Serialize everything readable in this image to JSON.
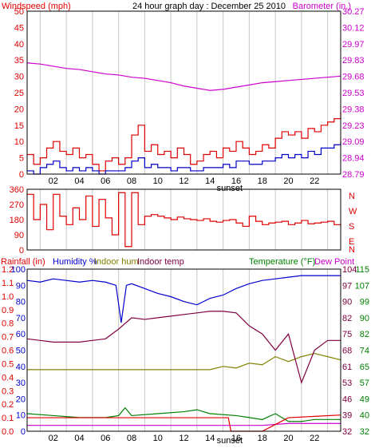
{
  "colors": {
    "red": "#e00000",
    "magenta": "#cc00cc",
    "blue": "#0000cc",
    "maroon": "#800040",
    "olive": "#808000",
    "green": "#008000",
    "grid": "#c8c8c8",
    "frame": "#000000"
  },
  "header": {
    "windspeed_label": "Windspeed (mph)",
    "title": "24 hour graph day : December 25 2010",
    "barometer_label": "Barometer (in.)"
  },
  "wind_dir_letters": [
    "N",
    "W",
    "S",
    "E",
    "N"
  ],
  "bottom_header": {
    "rainfall": "Rainfall (in)",
    "humidity": "Humidity %",
    "indoor_hum": "Indoor hum",
    "indoor_temp": "Indoor temp",
    "temperature": "Temperature (°F)",
    "dew_point": "Dew Point"
  },
  "chart_data": [
    {
      "type": "line",
      "x_ticks": [
        "02",
        "04",
        "06",
        "08",
        "10",
        "12",
        "14",
        "16",
        "18",
        "20",
        "22"
      ],
      "x_annotation": "sunset",
      "y_left": {
        "label": "Windspeed (mph)",
        "ticks": [
          "0",
          "5",
          "10",
          "15",
          "20",
          "25",
          "30",
          "35",
          "40",
          "45",
          "50"
        ],
        "range": [
          0,
          50
        ]
      },
      "y_right": {
        "label": "Barometer (in.)",
        "ticks": [
          "28.79",
          "28.94",
          "29.09",
          "29.23",
          "29.38",
          "29.53",
          "29.68",
          "29.83",
          "29.97",
          "30.12",
          "30.27"
        ],
        "range": [
          28.79,
          30.27
        ]
      },
      "series": [
        {
          "name": "Windspeed (mph)",
          "color_key": "red",
          "note": "gust",
          "x": [
            0,
            0.5,
            1,
            1.5,
            2,
            2.5,
            3,
            3.5,
            4,
            4.5,
            5,
            5.5,
            6,
            6.5,
            7,
            7.5,
            8,
            8.5,
            9,
            9.5,
            10,
            10.5,
            11,
            11.5,
            12,
            12.5,
            13,
            13.5,
            14,
            14.5,
            15,
            15.5,
            16,
            16.5,
            17,
            17.5,
            18,
            18.5,
            19,
            19.5,
            20,
            20.5,
            21,
            21.5,
            22,
            22.5,
            23,
            23.5,
            24
          ],
          "y": [
            6,
            3,
            5,
            8,
            10,
            7,
            6,
            8,
            5,
            6,
            3,
            1,
            4,
            5,
            3,
            5,
            12,
            15,
            7,
            9,
            6,
            7,
            5,
            8,
            6,
            3,
            4,
            6,
            7,
            5,
            8,
            7,
            10,
            8,
            6,
            7,
            9,
            8,
            11,
            13,
            12,
            13,
            11,
            14,
            13,
            15,
            16,
            17,
            19
          ]
        },
        {
          "name": "",
          "color_key": "blue",
          "x": [
            0,
            0.5,
            1,
            1.5,
            2,
            2.5,
            3,
            3.5,
            4,
            4.5,
            5,
            5.5,
            6,
            6.5,
            7,
            7.5,
            8,
            8.5,
            9,
            9.5,
            10,
            10.5,
            11,
            11.5,
            12,
            12.5,
            13,
            13.5,
            14,
            14.5,
            15,
            15.5,
            16,
            16.5,
            17,
            17.5,
            18,
            18.5,
            19,
            19.5,
            20,
            20.5,
            21,
            21.5,
            22,
            22.5,
            23,
            23.5,
            24
          ],
          "y": [
            1,
            0,
            2,
            3,
            4,
            2,
            1,
            2,
            1,
            2,
            1,
            0,
            1,
            1,
            1,
            2,
            4,
            5,
            2,
            3,
            2,
            2,
            1,
            2,
            2,
            1,
            1,
            2,
            2,
            2,
            3,
            2,
            4,
            4,
            3,
            3,
            4,
            4,
            5,
            6,
            5,
            6,
            5,
            7,
            6,
            8,
            8,
            9,
            10
          ]
        },
        {
          "name": "Barometer (in.)",
          "color_key": "magenta",
          "axis": "right",
          "x": [
            0,
            1,
            2,
            3,
            4,
            5,
            6,
            7,
            8,
            9,
            10,
            11,
            12,
            13,
            14,
            15,
            16,
            17,
            18,
            19,
            20,
            21,
            22,
            23,
            24
          ],
          "y": [
            29.8,
            29.79,
            29.77,
            29.75,
            29.74,
            29.72,
            29.7,
            29.69,
            29.67,
            29.66,
            29.64,
            29.62,
            29.59,
            29.57,
            29.55,
            29.56,
            29.58,
            29.6,
            29.62,
            29.63,
            29.64,
            29.65,
            29.66,
            29.67,
            29.68
          ]
        }
      ]
    },
    {
      "type": "scatter",
      "x_ticks": [
        "02",
        "04",
        "06",
        "08",
        "10",
        "12",
        "14",
        "16",
        "18",
        "20",
        "22"
      ],
      "y_left": {
        "ticks": [
          "0",
          "90",
          "180",
          "270",
          "360"
        ],
        "range": [
          0,
          360
        ]
      },
      "y_right_labels": [
        "N",
        "W",
        "S",
        "E",
        "N"
      ],
      "series": [
        {
          "name": "",
          "color_key": "red",
          "x": [
            0,
            0.5,
            1,
            1.5,
            2,
            2.5,
            3,
            3.5,
            4,
            4.5,
            5,
            5.5,
            6,
            6.5,
            7,
            7.5,
            8,
            8.5,
            9,
            9.5,
            10,
            10.5,
            11,
            11.5,
            12,
            12.5,
            13,
            13.5,
            14,
            14.5,
            15,
            15.5,
            16,
            16.5,
            17,
            17.5,
            18,
            18.5,
            19,
            19.5,
            20,
            20.5,
            21,
            21.5,
            22,
            22.5,
            23,
            23.5,
            24
          ],
          "y": [
            330,
            180,
            270,
            120,
            330,
            200,
            150,
            250,
            180,
            320,
            140,
            300,
            190,
            90,
            340,
            20,
            340,
            150,
            200,
            210,
            200,
            190,
            180,
            195,
            185,
            180,
            175,
            185,
            170,
            165,
            175,
            180,
            160,
            140,
            200,
            170,
            150,
            160,
            165,
            170,
            150,
            160,
            175,
            155,
            160,
            165,
            170,
            150,
            140
          ]
        }
      ]
    },
    {
      "type": "line",
      "x_ticks": [
        "02",
        "04",
        "06",
        "08",
        "10",
        "12",
        "14",
        "16",
        "18",
        "20",
        "22"
      ],
      "x_annotation": "sunset",
      "y_left_outer": {
        "label": "Rainfall (in)",
        "ticks": [
          "0.0",
          "0.1",
          "0.2",
          "0.3",
          "0.4",
          "0.5",
          "0.6",
          "0.7",
          "0.8",
          "0.9",
          "1.0",
          "1.1",
          "1.2"
        ],
        "range": [
          0,
          1.2
        ]
      },
      "y_left_inner": {
        "label": "Humidity %",
        "ticks": [
          "0",
          "10",
          "20",
          "30",
          "40",
          "50",
          "60",
          "70",
          "80",
          "90",
          "100"
        ],
        "range": [
          0,
          100
        ]
      },
      "y_right_inner": {
        "ticks": [
          "32",
          "39",
          "46",
          "53",
          "61",
          "68",
          "75",
          "82",
          "90",
          "97",
          "104"
        ],
        "range": [
          32,
          104
        ]
      },
      "y_right_outer": {
        "label": "Temperature (°F)",
        "ticks": [
          "32",
          "40",
          "49",
          "57",
          "65",
          "74",
          "82",
          "90",
          "99",
          "107",
          "115"
        ],
        "range": [
          32,
          115
        ]
      },
      "series": [
        {
          "name": "Humidity %",
          "color_key": "blue",
          "axis": "humidity",
          "x": [
            0,
            1,
            2,
            3,
            4,
            5,
            6,
            6.8,
            7.2,
            7.6,
            8,
            9,
            10,
            11,
            12,
            13,
            14,
            15,
            16,
            17,
            18,
            19,
            20,
            21,
            22,
            23,
            24
          ],
          "y": [
            93,
            92,
            94,
            93,
            92,
            93,
            92,
            90,
            67,
            90,
            91,
            88,
            85,
            83,
            80,
            78,
            82,
            84,
            88,
            91,
            93,
            94,
            95,
            96,
            96,
            96,
            96
          ]
        },
        {
          "name": "Indoor hum",
          "color_key": "olive",
          "axis": "humidity",
          "x": [
            0,
            2,
            4,
            6,
            8,
            10,
            12,
            14,
            15,
            16,
            17,
            18,
            19,
            20,
            21,
            22,
            23,
            24
          ],
          "y": [
            38,
            38,
            38,
            38,
            38,
            38,
            38,
            38,
            40,
            39,
            42,
            41,
            46,
            43,
            46,
            48,
            46,
            44
          ]
        },
        {
          "name": "Indoor temp",
          "color_key": "maroon",
          "axis": "humidity",
          "x": [
            0,
            1,
            2,
            3,
            4,
            5,
            6,
            7,
            8,
            9,
            10,
            11,
            12,
            13,
            14,
            15,
            16,
            17,
            18,
            19,
            20,
            21,
            22,
            23,
            24
          ],
          "y": [
            57,
            56,
            55,
            55,
            55,
            56,
            57,
            63,
            70,
            69,
            70,
            71,
            72,
            73,
            74,
            74,
            73,
            65,
            60,
            50,
            60,
            30,
            50,
            56,
            56
          ]
        },
        {
          "name": "Temperature (°F)",
          "color_key": "green",
          "axis": "temperature",
          "x": [
            0,
            2,
            4,
            6,
            7,
            7.5,
            8,
            10,
            12,
            13,
            14,
            16,
            17,
            18,
            19,
            20,
            21,
            22,
            23,
            24
          ],
          "y": [
            41,
            40,
            39,
            39,
            40,
            44,
            40,
            41,
            42,
            43,
            41,
            40,
            39,
            38,
            41,
            37,
            37,
            38,
            38,
            38
          ]
        },
        {
          "name": "Dew Point",
          "color_key": "magenta",
          "axis": "temperature",
          "x": [
            0,
            2,
            4,
            6,
            8,
            10,
            12,
            14,
            16,
            18,
            20,
            22,
            24
          ],
          "y": [
            35,
            35,
            35,
            35,
            35,
            35,
            35,
            35,
            35,
            35,
            36,
            36,
            36
          ]
        },
        {
          "name": "Rainfall (in)",
          "color_key": "red",
          "axis": "rain",
          "x": [
            0,
            15.4,
            15.6,
            16,
            18,
            19,
            20,
            22,
            24
          ],
          "y": [
            0.1,
            0.1,
            0.0,
            0.0,
            0.0,
            0.05,
            0.1,
            0.11,
            0.12
          ]
        }
      ]
    }
  ]
}
